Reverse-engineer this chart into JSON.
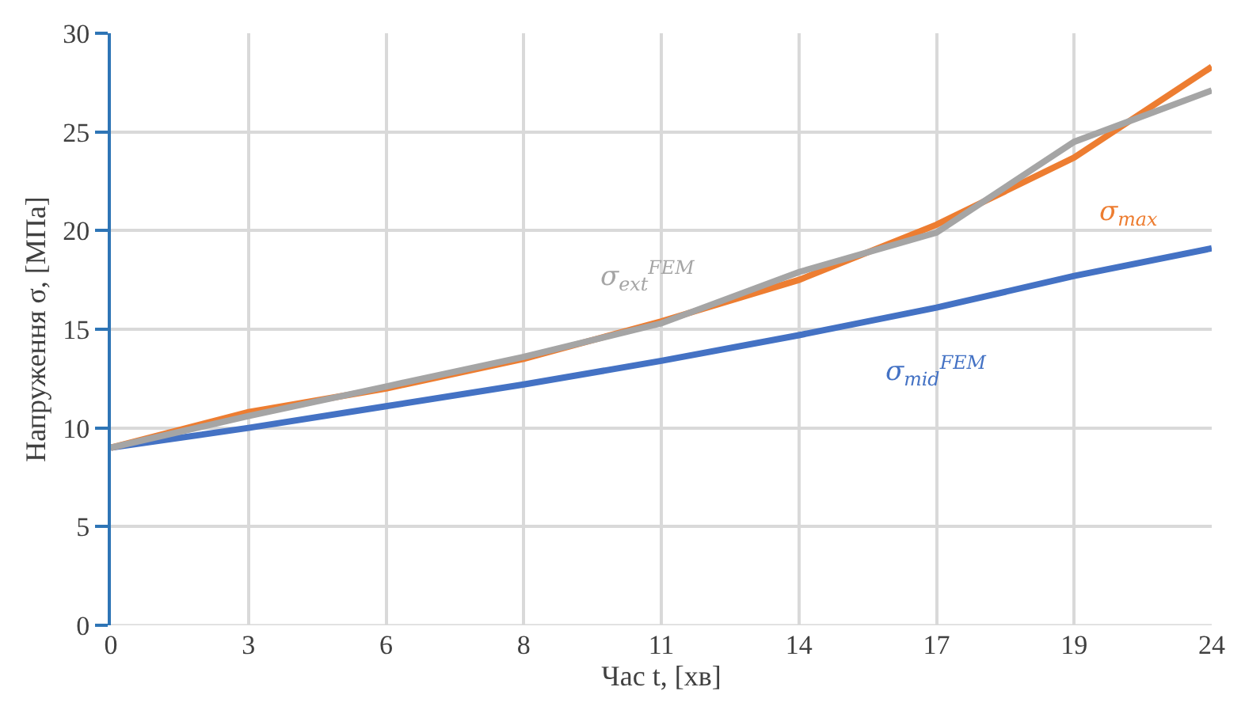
{
  "chart_data": {
    "type": "line",
    "xlabel": "Час t, [хв]",
    "ylabel": "Напруження σ, [МПа]",
    "categories": [
      "0",
      "3",
      "6",
      "8",
      "11",
      "14",
      "17",
      "19",
      "24"
    ],
    "series": [
      {
        "name": "σ$_{mid}$$^{FEM}$",
        "color": "#4472c4",
        "values": [
          9.0,
          10.0,
          11.1,
          12.2,
          13.4,
          14.7,
          16.1,
          17.7,
          19.1
        ]
      },
      {
        "name": "σ$_{max}$",
        "color": "#ed7d31",
        "values": [
          9.0,
          10.8,
          12.0,
          13.5,
          15.4,
          17.5,
          20.3,
          23.7,
          28.3
        ]
      },
      {
        "name": "σ$_{ext}$$^{FEM}$",
        "color": "#a5a5a5",
        "values": [
          9.0,
          10.6,
          12.1,
          13.6,
          15.3,
          17.9,
          19.9,
          24.5,
          27.1
        ]
      }
    ],
    "ylim": [
      0,
      30
    ],
    "yticks": [
      0,
      5,
      10,
      15,
      20,
      25,
      30
    ],
    "grid": true,
    "legend": false,
    "marker": "none",
    "line_style": "solid"
  }
}
